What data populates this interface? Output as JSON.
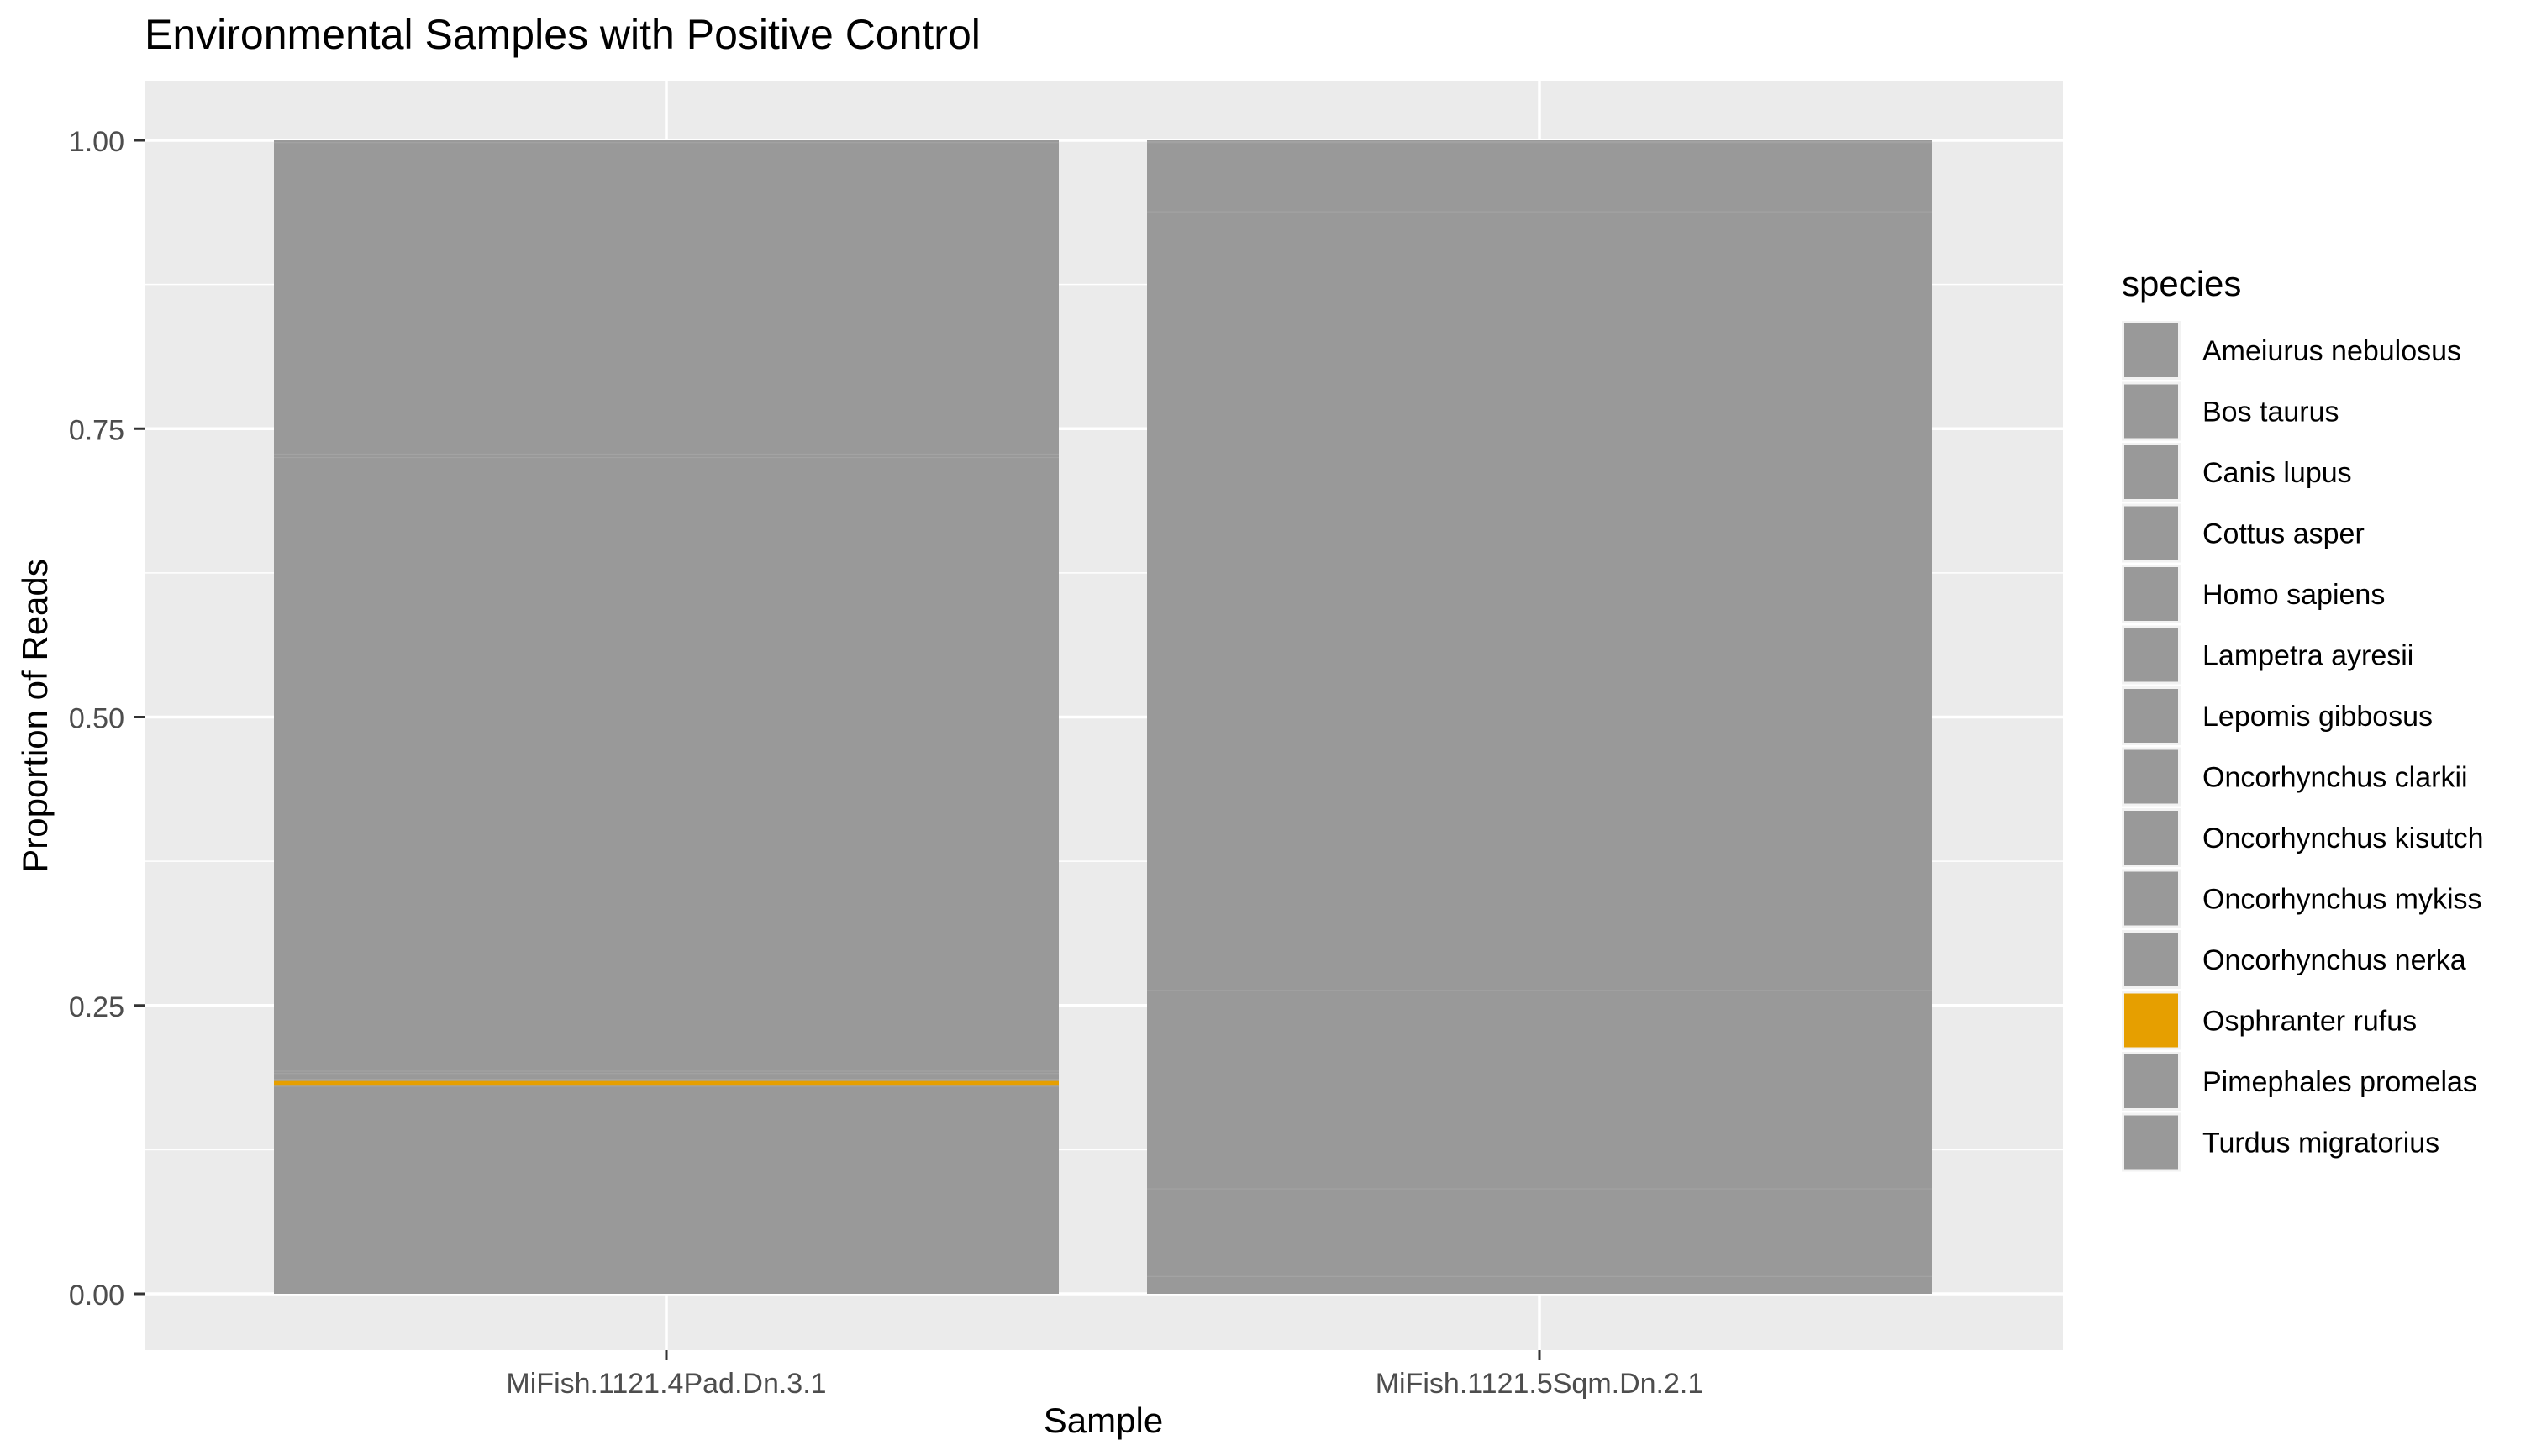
{
  "chart_data": {
    "type": "bar",
    "stacked": true,
    "title": "Environmental Samples with Positive Control",
    "xlabel": "Sample",
    "ylabel": "Proportion of Reads",
    "ylim": [
      0,
      1
    ],
    "yticks": [
      "0.00",
      "0.25",
      "0.50",
      "0.75",
      "1.00"
    ],
    "grid": true,
    "legend_title": "species",
    "legend_position": "right",
    "categories": [
      "MiFish.1121.4Pad.Dn.3.1",
      "MiFish.1121.5Sqm.Dn.2.1"
    ],
    "colors": {
      "highlight": "#E69F00",
      "other": "#999999",
      "panel": "#EBEBEB",
      "grid": "#FFFFFF"
    },
    "series": [
      {
        "name": "Ameiurus nebulosus",
        "color": "#999999",
        "values": [
          0.002,
          0.0
        ]
      },
      {
        "name": "Bos taurus",
        "color": "#999999",
        "values": [
          0.0,
          0.001
        ]
      },
      {
        "name": "Canis lupus",
        "color": "#999999",
        "values": [
          0.0,
          0.001
        ]
      },
      {
        "name": "Cottus asper",
        "color": "#999999",
        "values": [
          0.27,
          0.06
        ]
      },
      {
        "name": "Homo sapiens",
        "color": "#999999",
        "values": [
          0.0,
          0.0
        ]
      },
      {
        "name": "Lampetra ayresii",
        "color": "#999999",
        "values": [
          0.003,
          0.675
        ]
      },
      {
        "name": "Lepomis gibbosus",
        "color": "#999999",
        "values": [
          0.0,
          0.0
        ]
      },
      {
        "name": "Oncorhynchus clarkii",
        "color": "#999999",
        "values": [
          0.532,
          0.172
        ]
      },
      {
        "name": "Oncorhynchus kisutch",
        "color": "#999999",
        "values": [
          0.002,
          0.0
        ]
      },
      {
        "name": "Oncorhynchus mykiss",
        "color": "#999999",
        "values": [
          0.005,
          0.076
        ]
      },
      {
        "name": "Oncorhynchus nerka",
        "color": "#999999",
        "values": [
          0.001,
          0.0
        ]
      },
      {
        "name": "Osphranter rufus",
        "color": "#E69F00",
        "values": [
          0.005,
          0.0
        ]
      },
      {
        "name": "Pimephales promelas",
        "color": "#999999",
        "values": [
          0.18,
          0.015
        ]
      },
      {
        "name": "Turdus migratorius",
        "color": "#999999",
        "values": [
          0.0,
          0.0
        ]
      }
    ]
  }
}
